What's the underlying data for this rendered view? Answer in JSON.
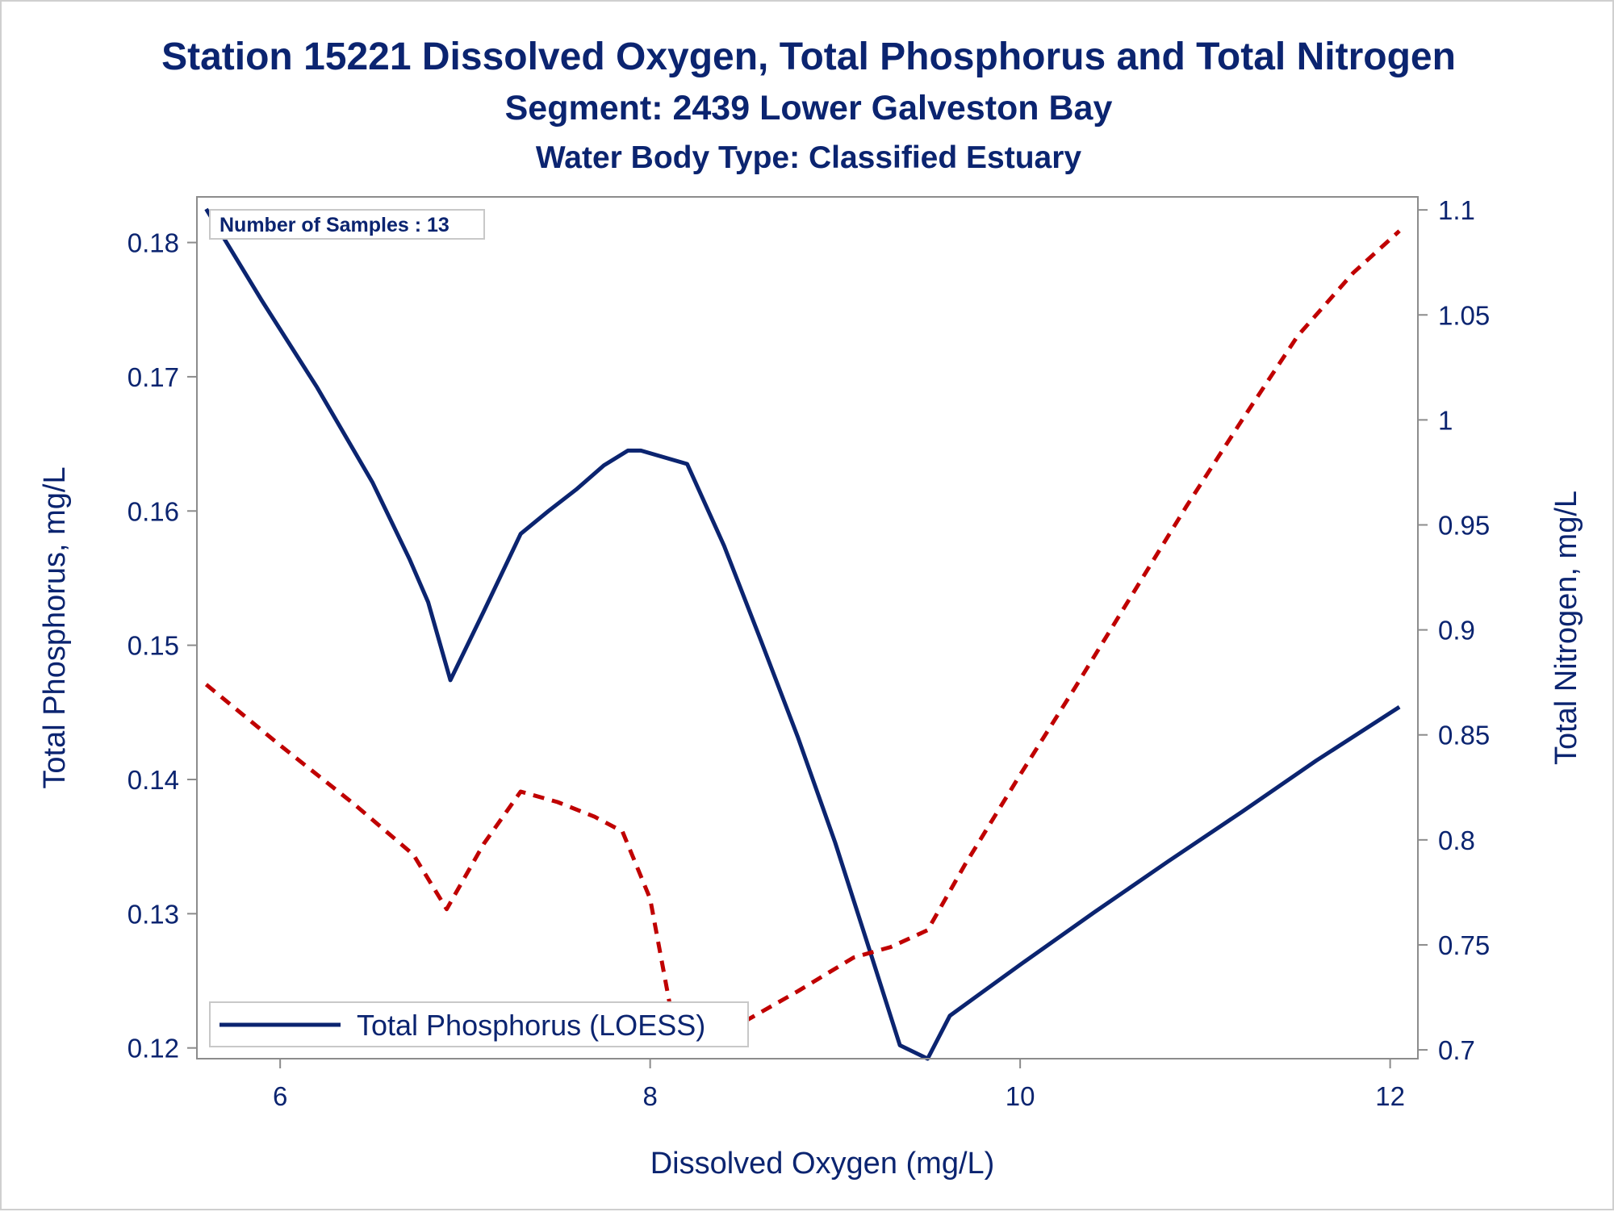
{
  "chart_data": {
    "type": "line",
    "title": "Station 15221  Dissolved Oxygen, Total Phosphorus and Total Nitrogen",
    "subtitle": "Segment: 2439  Lower Galveston Bay",
    "subtitle2": "Water Body Type: Classified Estuary",
    "xlabel": "Dissolved Oxygen (mg/L)",
    "ylabel_left": "Total Phosphorus, mg/L",
    "ylabel_right": "Total Nitrogen, mg/L",
    "xlim": [
      5.55,
      12.15
    ],
    "ylim_left": [
      0.1192,
      0.1834
    ],
    "ylim_right": [
      0.6958,
      1.1062
    ],
    "x_ticks": [
      6,
      8,
      10,
      12
    ],
    "y_left_ticks": [
      0.12,
      0.13,
      0.14,
      0.15,
      0.16,
      0.17,
      0.18
    ],
    "y_right_ticks": [
      0.7,
      0.75,
      0.8,
      0.85,
      0.9,
      0.95,
      1,
      1.05,
      1.1
    ],
    "grid": false,
    "inset_label": "Number of Samples : 13",
    "legend": {
      "position": "bottom-left",
      "entries": [
        "Total Phosphorus (LOESS)"
      ]
    },
    "series": [
      {
        "name": "Total Phosphorus (LOESS)",
        "axis": "left",
        "color": "#0b2470",
        "style": "solid",
        "x": [
          5.6,
          5.9,
          6.2,
          6.5,
          6.7,
          6.8,
          6.92,
          7.1,
          7.3,
          7.45,
          7.6,
          7.75,
          7.88,
          7.95,
          8.1,
          8.2,
          8.4,
          8.6,
          8.8,
          9.0,
          9.2,
          9.35,
          9.5,
          9.62,
          9.75,
          10.0,
          10.4,
          10.8,
          11.2,
          11.6,
          12.05
        ],
        "y": [
          0.1825,
          0.1757,
          0.1692,
          0.1621,
          0.1564,
          0.1532,
          0.1474,
          0.1525,
          0.1583,
          0.16,
          0.1616,
          0.1634,
          0.1645,
          0.1645,
          0.1639,
          0.1635,
          0.1574,
          0.1503,
          0.1431,
          0.1353,
          0.1267,
          0.1202,
          0.1192,
          0.1224,
          0.1237,
          0.1262,
          0.1301,
          0.1339,
          0.1376,
          0.1414,
          0.1454
        ]
      },
      {
        "name": "",
        "axis": "right",
        "color": "#c00000",
        "style": "dashed",
        "x": [
          5.6,
          6.0,
          6.4,
          6.72,
          6.9,
          7.1,
          7.3,
          7.5,
          7.7,
          7.85,
          8.0,
          8.12,
          8.2,
          8.5,
          8.8,
          9.1,
          9.3,
          9.5,
          9.7,
          10.0,
          10.3,
          10.6,
          10.9,
          11.2,
          11.5,
          11.8,
          12.05
        ],
        "y": [
          0.874,
          0.845,
          0.817,
          0.793,
          0.767,
          0.798,
          0.823,
          0.818,
          0.811,
          0.804,
          0.772,
          0.715,
          0.701,
          0.713,
          0.728,
          0.744,
          0.749,
          0.757,
          0.788,
          0.831,
          0.873,
          0.916,
          0.959,
          1.0,
          1.04,
          1.07,
          1.09
        ]
      }
    ]
  }
}
